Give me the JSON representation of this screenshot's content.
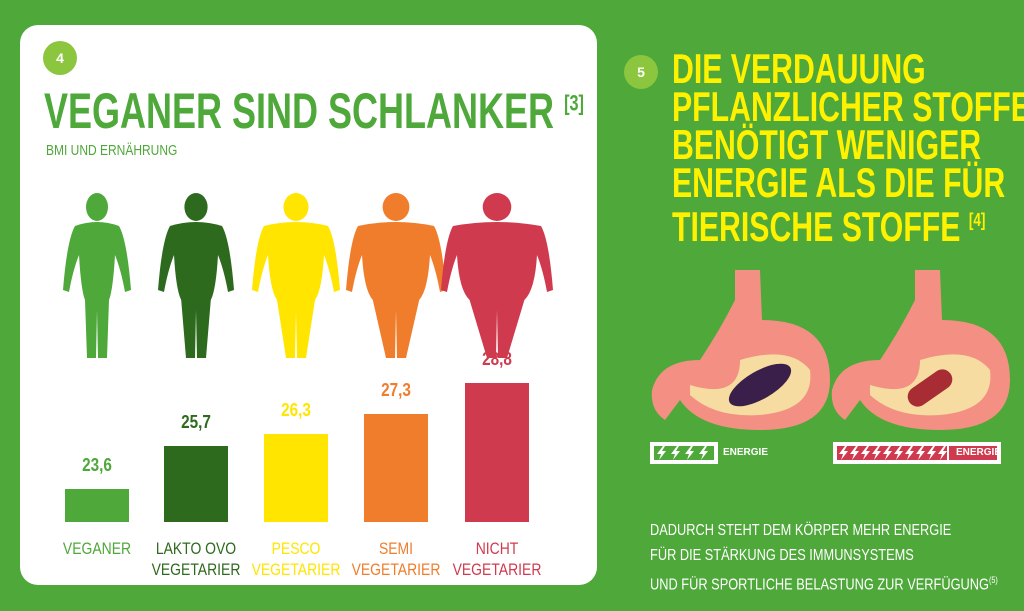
{
  "chart_data": {
    "type": "bar",
    "badge": "4",
    "title": "VEGANER SIND SCHLANKER",
    "title_ref": "[3]",
    "subtitle": "BMI UND ERNÄHRUNG",
    "categories": [
      "VEGANER",
      "LAKTO OVO\nVEGETARIER",
      "PESCO\nVEGETARIER",
      "SEMI\nVEGETARIER",
      "NICHT\nVEGETARIER"
    ],
    "values": [
      23.6,
      25.7,
      26.3,
      27.3,
      28.8
    ],
    "value_labels": [
      "23,6",
      "25,7",
      "26,3",
      "27,3",
      "28,8"
    ],
    "colors": [
      "#4ea83a",
      "#2d6a1e",
      "#ffe500",
      "#f07d2c",
      "#d03a4e"
    ],
    "ylim": [
      22,
      29
    ]
  },
  "panel5": {
    "badge": "5",
    "heading": [
      "DIE VERDAUUNG",
      "PFLANZLICHER STOFFE",
      "BENÖTIGT WENIGER",
      "ENERGIE ALS DIE FÜR",
      "TIERISCHE STOFFE"
    ],
    "heading_ref": "[4]",
    "energy_left": "ENERGIE",
    "energy_right": "ENERGIE",
    "footer": [
      "DADURCH STEHT DEM KÖRPER MEHR ENERGIE",
      "FÜR DIE STÄRKUNG DES IMMUNSYSTEMS",
      "UND FÜR SPORTLICHE BELASTUNG ZUR VERFÜGUNG"
    ],
    "footer_ref": "(5)"
  }
}
